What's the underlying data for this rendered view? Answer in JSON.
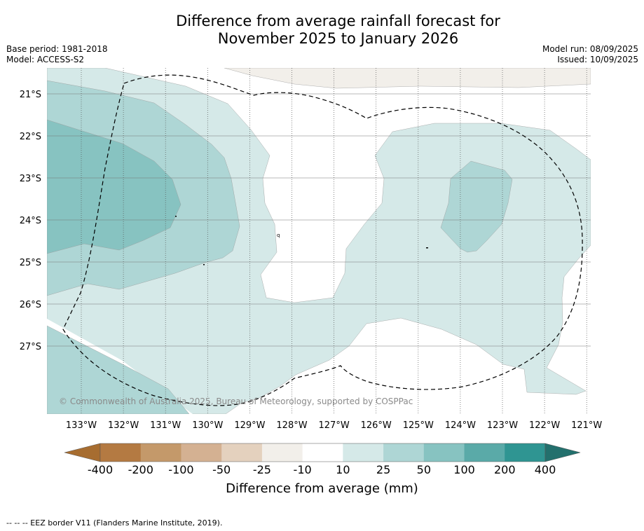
{
  "title": {
    "line1": "Difference from average rainfall forecast for",
    "line2": "November 2025 to January 2026"
  },
  "meta_left": {
    "base_period": "Base period: 1981-2018",
    "model": "Model: ACCESS-S2"
  },
  "meta_right": {
    "model_run": "Model run: 08/09/2025",
    "issued": "Issued: 10/09/2025"
  },
  "map": {
    "lat_labels": [
      "21°S",
      "22°S",
      "23°S",
      "24°S",
      "25°S",
      "26°S",
      "27°S"
    ],
    "lon_labels": [
      "133°W",
      "132°W",
      "131°W",
      "130°W",
      "129°W",
      "128°W",
      "127°W",
      "126°W",
      "125°W",
      "124°W",
      "123°W",
      "122°W",
      "121°W"
    ],
    "copyright": "© Commonwealth of Australia 2025, Bureau of Meteorology, supported by COSPPac",
    "colors": {
      "dry_10_25": "#f2efea",
      "wet_10_25": "#d5e9e8",
      "wet_25_50": "#aed6d5",
      "wet_50_100": "#87c3c1"
    }
  },
  "colorbar": {
    "label": "Difference from average (mm)",
    "ticks": [
      "-400",
      "-200",
      "-100",
      "-50",
      "-25",
      "-10",
      "10",
      "25",
      "50",
      "100",
      "200",
      "400"
    ],
    "colors": [
      "#a76d30",
      "#b47a42",
      "#c4996a",
      "#d4b192",
      "#e4d1be",
      "#f2efea",
      "#ffffff",
      "#d5e9e8",
      "#aed6d5",
      "#87c3c1",
      "#5aaaa8",
      "#2f9592",
      "#23706d"
    ]
  },
  "legend_note": "--  --  -- EEZ border V11 (Flanders Marine Institute, 2019)."
}
